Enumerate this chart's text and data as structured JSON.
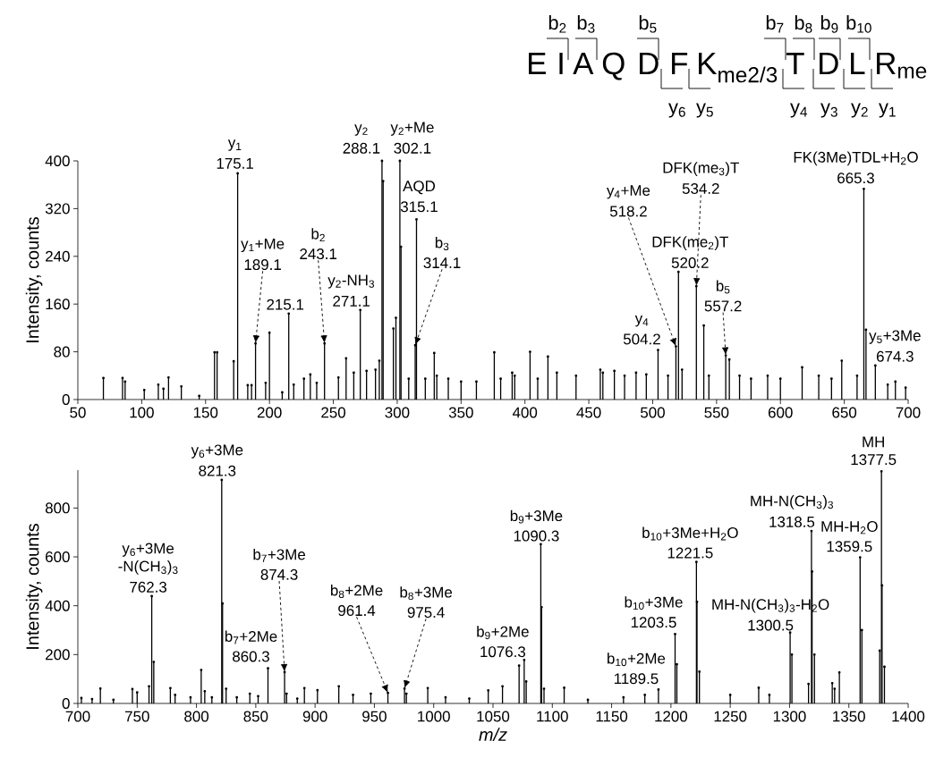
{
  "chart_data": [
    {
      "type": "lollipop",
      "marker": "circle",
      "ylabel": "Intensity, counts",
      "color": "#000000",
      "x": [
        70,
        85,
        87,
        102,
        113,
        117,
        121,
        131,
        145,
        157,
        159,
        172,
        175.1,
        183,
        186,
        189.1,
        197,
        200,
        210,
        215.1,
        219,
        227,
        232,
        237,
        243.1,
        254,
        260,
        266,
        271.1,
        276,
        283,
        286,
        288.1,
        289,
        297,
        299,
        302.1,
        303,
        309,
        314.1,
        315.1,
        322,
        329,
        331,
        340,
        350,
        362,
        376,
        381,
        390,
        392,
        404,
        410,
        418,
        425,
        440,
        459,
        461,
        470,
        478,
        487,
        495,
        504.2,
        512,
        518.2,
        520.2,
        523,
        534.2,
        540,
        544,
        557.2,
        560,
        568,
        577,
        590,
        600,
        617,
        630,
        640,
        648,
        660,
        665.3,
        667,
        674.3,
        684,
        690,
        698
      ],
      "values": [
        36,
        36,
        30,
        16,
        25,
        18,
        37,
        22,
        6,
        79,
        79,
        64,
        379,
        24,
        24,
        94,
        28,
        112,
        12,
        144,
        25,
        35,
        42,
        28,
        94,
        37,
        69,
        45,
        150,
        48,
        50,
        65,
        400,
        366,
        119,
        137,
        400,
        256,
        35,
        91,
        302,
        35,
        78,
        40,
        35,
        30,
        30,
        79,
        35,
        45,
        40,
        80,
        35,
        72,
        45,
        40,
        50,
        45,
        48,
        40,
        45,
        42,
        83,
        40,
        89,
        214,
        50,
        190,
        124,
        40,
        74,
        67,
        40,
        35,
        40,
        35,
        54,
        40,
        35,
        65,
        40,
        353,
        117,
        57,
        25,
        30,
        20
      ],
      "xlim": [
        50,
        700
      ],
      "xticks": [
        50,
        100,
        150,
        200,
        250,
        300,
        350,
        400,
        450,
        500,
        550,
        600,
        650,
        700
      ],
      "ylim": [
        0,
        400
      ],
      "yticks": [
        0,
        80,
        160,
        240,
        320,
        400
      ],
      "annotations": [
        {
          "text": "y$_{1}$",
          "x": 175.1,
          "y": 379
        },
        {
          "text": "175.1",
          "x": 175.1,
          "y": 379
        },
        {
          "text": "y$_{1}$+Me",
          "x": 189.1,
          "y": 94
        },
        {
          "text": "189.1",
          "x": 189.1,
          "y": 94
        },
        {
          "text": "215.1",
          "x": 215.1,
          "y": 144
        },
        {
          "text": "b$_{2}$",
          "x": 243.1,
          "y": 94
        },
        {
          "text": "243.1",
          "x": 243.1,
          "y": 94
        },
        {
          "text": "y$_{2}$-NH$_{3}$",
          "x": 271.1,
          "y": 150
        },
        {
          "text": "271.1",
          "x": 271.1,
          "y": 150
        },
        {
          "text": "y$_{2}$",
          "x": 288.1,
          "y": 400
        },
        {
          "text": "288.1",
          "x": 288.1,
          "y": 400
        },
        {
          "text": "y$_{2}$+Me",
          "x": 302.1,
          "y": 400
        },
        {
          "text": "302.1",
          "x": 302.1,
          "y": 400
        },
        {
          "text": "AQD",
          "x": 315.1,
          "y": 302
        },
        {
          "text": "315.1",
          "x": 315.1,
          "y": 302
        },
        {
          "text": "b$_{3}$",
          "x": 314.1,
          "y": 91
        },
        {
          "text": "314.1",
          "x": 314.1,
          "y": 91
        },
        {
          "text": "y$_{4}$",
          "x": 504.2,
          "y": 83
        },
        {
          "text": "504.2",
          "x": 504.2,
          "y": 83
        },
        {
          "text": "y$_{4}$+Me",
          "x": 518.2,
          "y": 89
        },
        {
          "text": "518.2",
          "x": 518.2,
          "y": 89
        },
        {
          "text": "DFK(me$_{2}$)T",
          "x": 520.2,
          "y": 214
        },
        {
          "text": "520.2",
          "x": 520.2,
          "y": 214
        },
        {
          "text": "DFK(me$_{3}$)T",
          "x": 534.2,
          "y": 190
        },
        {
          "text": "534.2",
          "x": 534.2,
          "y": 190
        },
        {
          "text": "b$_{5}$",
          "x": 557.2,
          "y": 74
        },
        {
          "text": "557.2",
          "x": 557.2,
          "y": 74
        },
        {
          "text": "FK(3Me)TDL+H$_{2}$O",
          "x": 665.3,
          "y": 353
        },
        {
          "text": "665.3",
          "x": 665.3,
          "y": 353
        },
        {
          "text": "y$_{5}$+3Me",
          "x": 674.3,
          "y": 57
        },
        {
          "text": "674.3",
          "x": 674.3,
          "y": 57
        },
        "E",
        "I",
        "A",
        "Q",
        "D",
        "F",
        "K$_{me2/3}$",
        "T",
        "D",
        "L",
        "R$_{me}$",
        "b$_{2}$",
        "b$_{3}$",
        "b$_{5}$",
        "b$_{7}$",
        "b$_{8}$",
        "b$_{9}$",
        "b$_{10}$",
        "y$_{6}$",
        "y$_{5}$",
        "y$_{4}$",
        "y$_{3}$",
        "y$_{2}$",
        "y$_{1}$"
      ]
    },
    {
      "type": "lollipop",
      "marker": "circle",
      "ylabel": "Intensity, counts",
      "xlabel": "m/z",
      "color": "#000000",
      "x": [
        703,
        712,
        719,
        730,
        746,
        750,
        760,
        762.3,
        764,
        778,
        782,
        795,
        804,
        807,
        813,
        821.3,
        822,
        825,
        834,
        845,
        852,
        860.3,
        874.3,
        876,
        885,
        891,
        902,
        920,
        932,
        947,
        961.4,
        975.4,
        977,
        995,
        1010,
        1030,
        1046,
        1058,
        1072,
        1076.3,
        1078,
        1090.3,
        1091,
        1093,
        1110,
        1130,
        1160,
        1178,
        1189.5,
        1203.5,
        1205,
        1221.5,
        1222,
        1224,
        1250,
        1274,
        1283,
        1300.5,
        1302,
        1316,
        1318.5,
        1319,
        1321,
        1336,
        1338,
        1342,
        1359.5,
        1361,
        1376,
        1377.5,
        1378,
        1380
      ],
      "values": [
        22,
        18,
        61,
        15,
        59,
        45,
        70,
        439,
        170,
        63,
        35,
        25,
        137,
        50,
        25,
        915,
        409,
        60,
        25,
        40,
        30,
        144,
        128,
        40,
        20,
        63,
        54,
        70,
        35,
        40,
        43,
        61,
        40,
        63,
        25,
        20,
        53,
        70,
        155,
        178,
        90,
        652,
        394,
        60,
        64,
        15,
        25,
        35,
        57,
        284,
        160,
        579,
        416,
        130,
        35,
        64,
        35,
        290,
        200,
        80,
        706,
        540,
        200,
        83,
        60,
        127,
        598,
        300,
        216,
        950,
        483,
        150
      ],
      "xlim": [
        700,
        1400
      ],
      "xticks": [
        700,
        750,
        800,
        850,
        900,
        950,
        1000,
        1050,
        1100,
        1150,
        1200,
        1250,
        1300,
        1350,
        1400
      ],
      "ylim": [
        0,
        955
      ],
      "yticks": [
        0,
        200,
        400,
        600,
        800
      ],
      "annotations": [
        {
          "text": "y$_{6}$+3Me",
          "x": 762.3,
          "y": 439
        },
        {
          "text": "-N(CH$_{3}$)$_{3}$",
          "x": 762.3,
          "y": 439
        },
        {
          "text": "762.3",
          "x": 762.3,
          "y": 439
        },
        {
          "text": "y$_{6}$+3Me",
          "x": 821.3,
          "y": 915
        },
        {
          "text": "821.3",
          "x": 821.3,
          "y": 915
        },
        {
          "text": "b$_{7}$+2Me",
          "x": 860.3,
          "y": 144
        },
        {
          "text": "860.3",
          "x": 860.3,
          "y": 144
        },
        {
          "text": "b$_{7}$+3Me",
          "x": 874.3,
          "y": 128
        },
        {
          "text": "874.3",
          "x": 874.3,
          "y": 128
        },
        {
          "text": "b$_{8}$+2Me",
          "x": 961.4,
          "y": 43
        },
        {
          "text": "961.4",
          "x": 961.4,
          "y": 43
        },
        {
          "text": "b$_{8}$+3Me",
          "x": 975.4,
          "y": 61
        },
        {
          "text": "975.4",
          "x": 975.4,
          "y": 61
        },
        {
          "text": "b$_{9}$+2Me",
          "x": 1076.3,
          "y": 178
        },
        {
          "text": "1076.3",
          "x": 1076.3,
          "y": 178
        },
        {
          "text": "b$_{9}$+3Me",
          "x": 1090.3,
          "y": 652
        },
        {
          "text": "1090.3",
          "x": 1090.3,
          "y": 652
        },
        {
          "text": "b$_{10}$+2Me",
          "x": 1189.5,
          "y": 57
        },
        {
          "text": "1189.5",
          "x": 1189.5,
          "y": 57
        },
        {
          "text": "b$_{10}$+3Me",
          "x": 1203.5,
          "y": 284
        },
        {
          "text": "1203.5",
          "x": 1203.5,
          "y": 284
        },
        {
          "text": "b$_{10}$+3Me+H$_{2}$O",
          "x": 1221.5,
          "y": 579
        },
        {
          "text": "1221.5",
          "x": 1221.5,
          "y": 579
        },
        {
          "text": "MH-N(CH$_{3}$)$_{3}$-H$_{2}$O",
          "x": 1300.5,
          "y": 290
        },
        {
          "text": "1300.5",
          "x": 1300.5,
          "y": 290
        },
        {
          "text": "MH-N(CH$_{3}$)$_{3}$",
          "x": 1318.5,
          "y": 706
        },
        {
          "text": "1318.5",
          "x": 1318.5,
          "y": 706
        },
        {
          "text": "MH-H$_{2}$O",
          "x": 1359.5,
          "y": 598
        },
        {
          "text": "1359.5",
          "x": 1359.5,
          "y": 598
        },
        {
          "text": "MH",
          "x": 1377.5,
          "y": 950
        },
        {
          "text": "1377.5",
          "x": 1377.5,
          "y": 950
        }
      ]
    }
  ]
}
